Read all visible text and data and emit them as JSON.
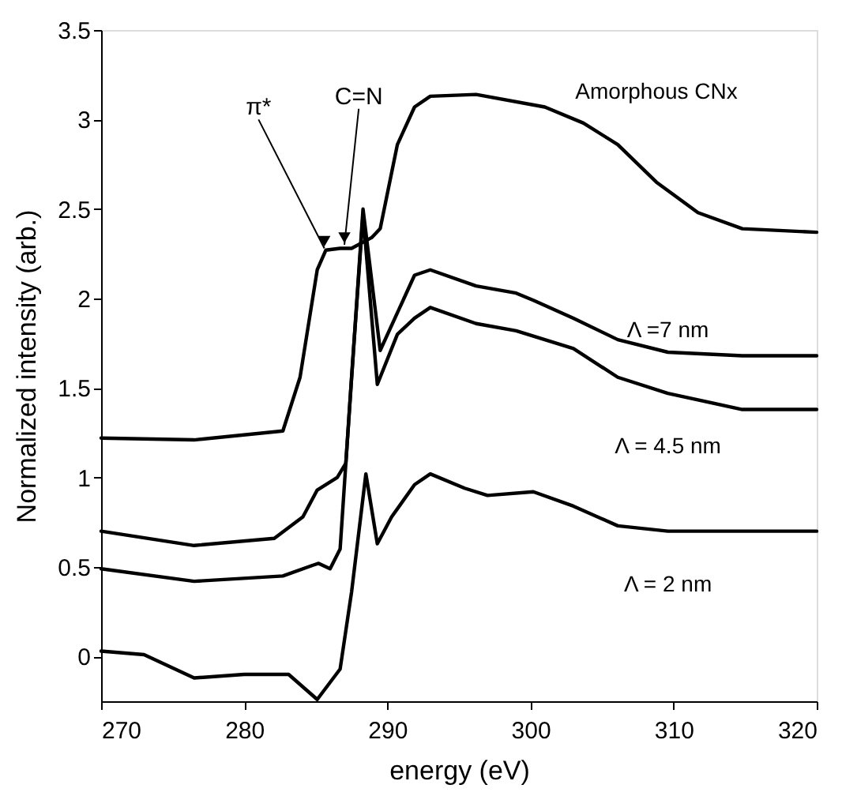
{
  "chart_data": {
    "type": "line",
    "xlabel": "energy (eV)",
    "ylabel": "Normalized intensity (arb.)",
    "xlim": [
      270,
      320
    ],
    "xticks": [
      270,
      280,
      290,
      300,
      310,
      320
    ],
    "ylim": [
      -0.25,
      3.5
    ],
    "yticks": [
      0,
      0.5,
      1,
      1.5,
      2,
      2.5,
      3,
      3.5
    ],
    "grid": false,
    "legend": false,
    "line_style": "solid",
    "marker": "none",
    "series": [
      {
        "name": "Amorphous CNx",
        "color": "#000000",
        "x": [
          270,
          276.5,
          282.7,
          283.9,
          285.1,
          285.7,
          286.7,
          287.5,
          288.9,
          289.5,
          290.7,
          291.9,
          293.0,
          296.2,
          301.0,
          303.7,
          306.1,
          308.8,
          311.7,
          314.8,
          320
        ],
        "values": [
          1.22,
          1.21,
          1.26,
          1.56,
          2.16,
          2.27,
          2.28,
          2.28,
          2.34,
          2.39,
          2.86,
          3.07,
          3.13,
          3.14,
          3.07,
          2.98,
          2.86,
          2.65,
          2.48,
          2.39,
          2.37
        ]
      },
      {
        "name": "Λ =7 nm",
        "color": "#000000",
        "x": [
          270,
          276.5,
          282.1,
          284.1,
          285.1,
          286.5,
          287.1,
          288.3,
          289.5,
          290.7,
          291.9,
          293.0,
          296.2,
          299.0,
          300.2,
          303.0,
          306.1,
          309.6,
          314.8,
          320
        ],
        "values": [
          0.7,
          0.62,
          0.66,
          0.78,
          0.93,
          1.0,
          1.08,
          2.5,
          1.71,
          1.92,
          2.13,
          2.16,
          2.07,
          2.03,
          1.99,
          1.89,
          1.77,
          1.7,
          1.68,
          1.68
        ]
      },
      {
        "name": "Λ = 4.5  nm",
        "color": "#000000",
        "x": [
          270,
          276.5,
          282.7,
          284.8,
          285.2,
          286.0,
          286.7,
          287.5,
          288.3,
          289.3,
          290.7,
          291.9,
          293.0,
          296.2,
          299.0,
          303.0,
          306.1,
          309.6,
          314.8,
          320
        ],
        "values": [
          0.49,
          0.42,
          0.45,
          0.51,
          0.52,
          0.49,
          0.6,
          1.56,
          2.47,
          1.52,
          1.8,
          1.89,
          1.95,
          1.86,
          1.82,
          1.72,
          1.56,
          1.47,
          1.38,
          1.38
        ]
      },
      {
        "name": "Λ = 2  nm",
        "color": "#000000",
        "x": [
          270,
          273.0,
          276.5,
          280.0,
          283.1,
          285.1,
          286.7,
          287.5,
          288.5,
          289.3,
          290.3,
          291.9,
          293.0,
          295.4,
          297.0,
          300.2,
          303.0,
          306.1,
          309.6,
          320
        ],
        "values": [
          0.03,
          0.01,
          -0.12,
          -0.1,
          -0.1,
          -0.24,
          -0.07,
          0.36,
          1.02,
          0.63,
          0.78,
          0.96,
          1.02,
          0.94,
          0.9,
          0.92,
          0.84,
          0.73,
          0.7,
          0.7
        ]
      }
    ],
    "annotations": [
      {
        "text": "π*",
        "x": 285.6,
        "y": 2.28
      },
      {
        "text": "C=N",
        "x": 287.0,
        "y": 2.3
      }
    ]
  }
}
